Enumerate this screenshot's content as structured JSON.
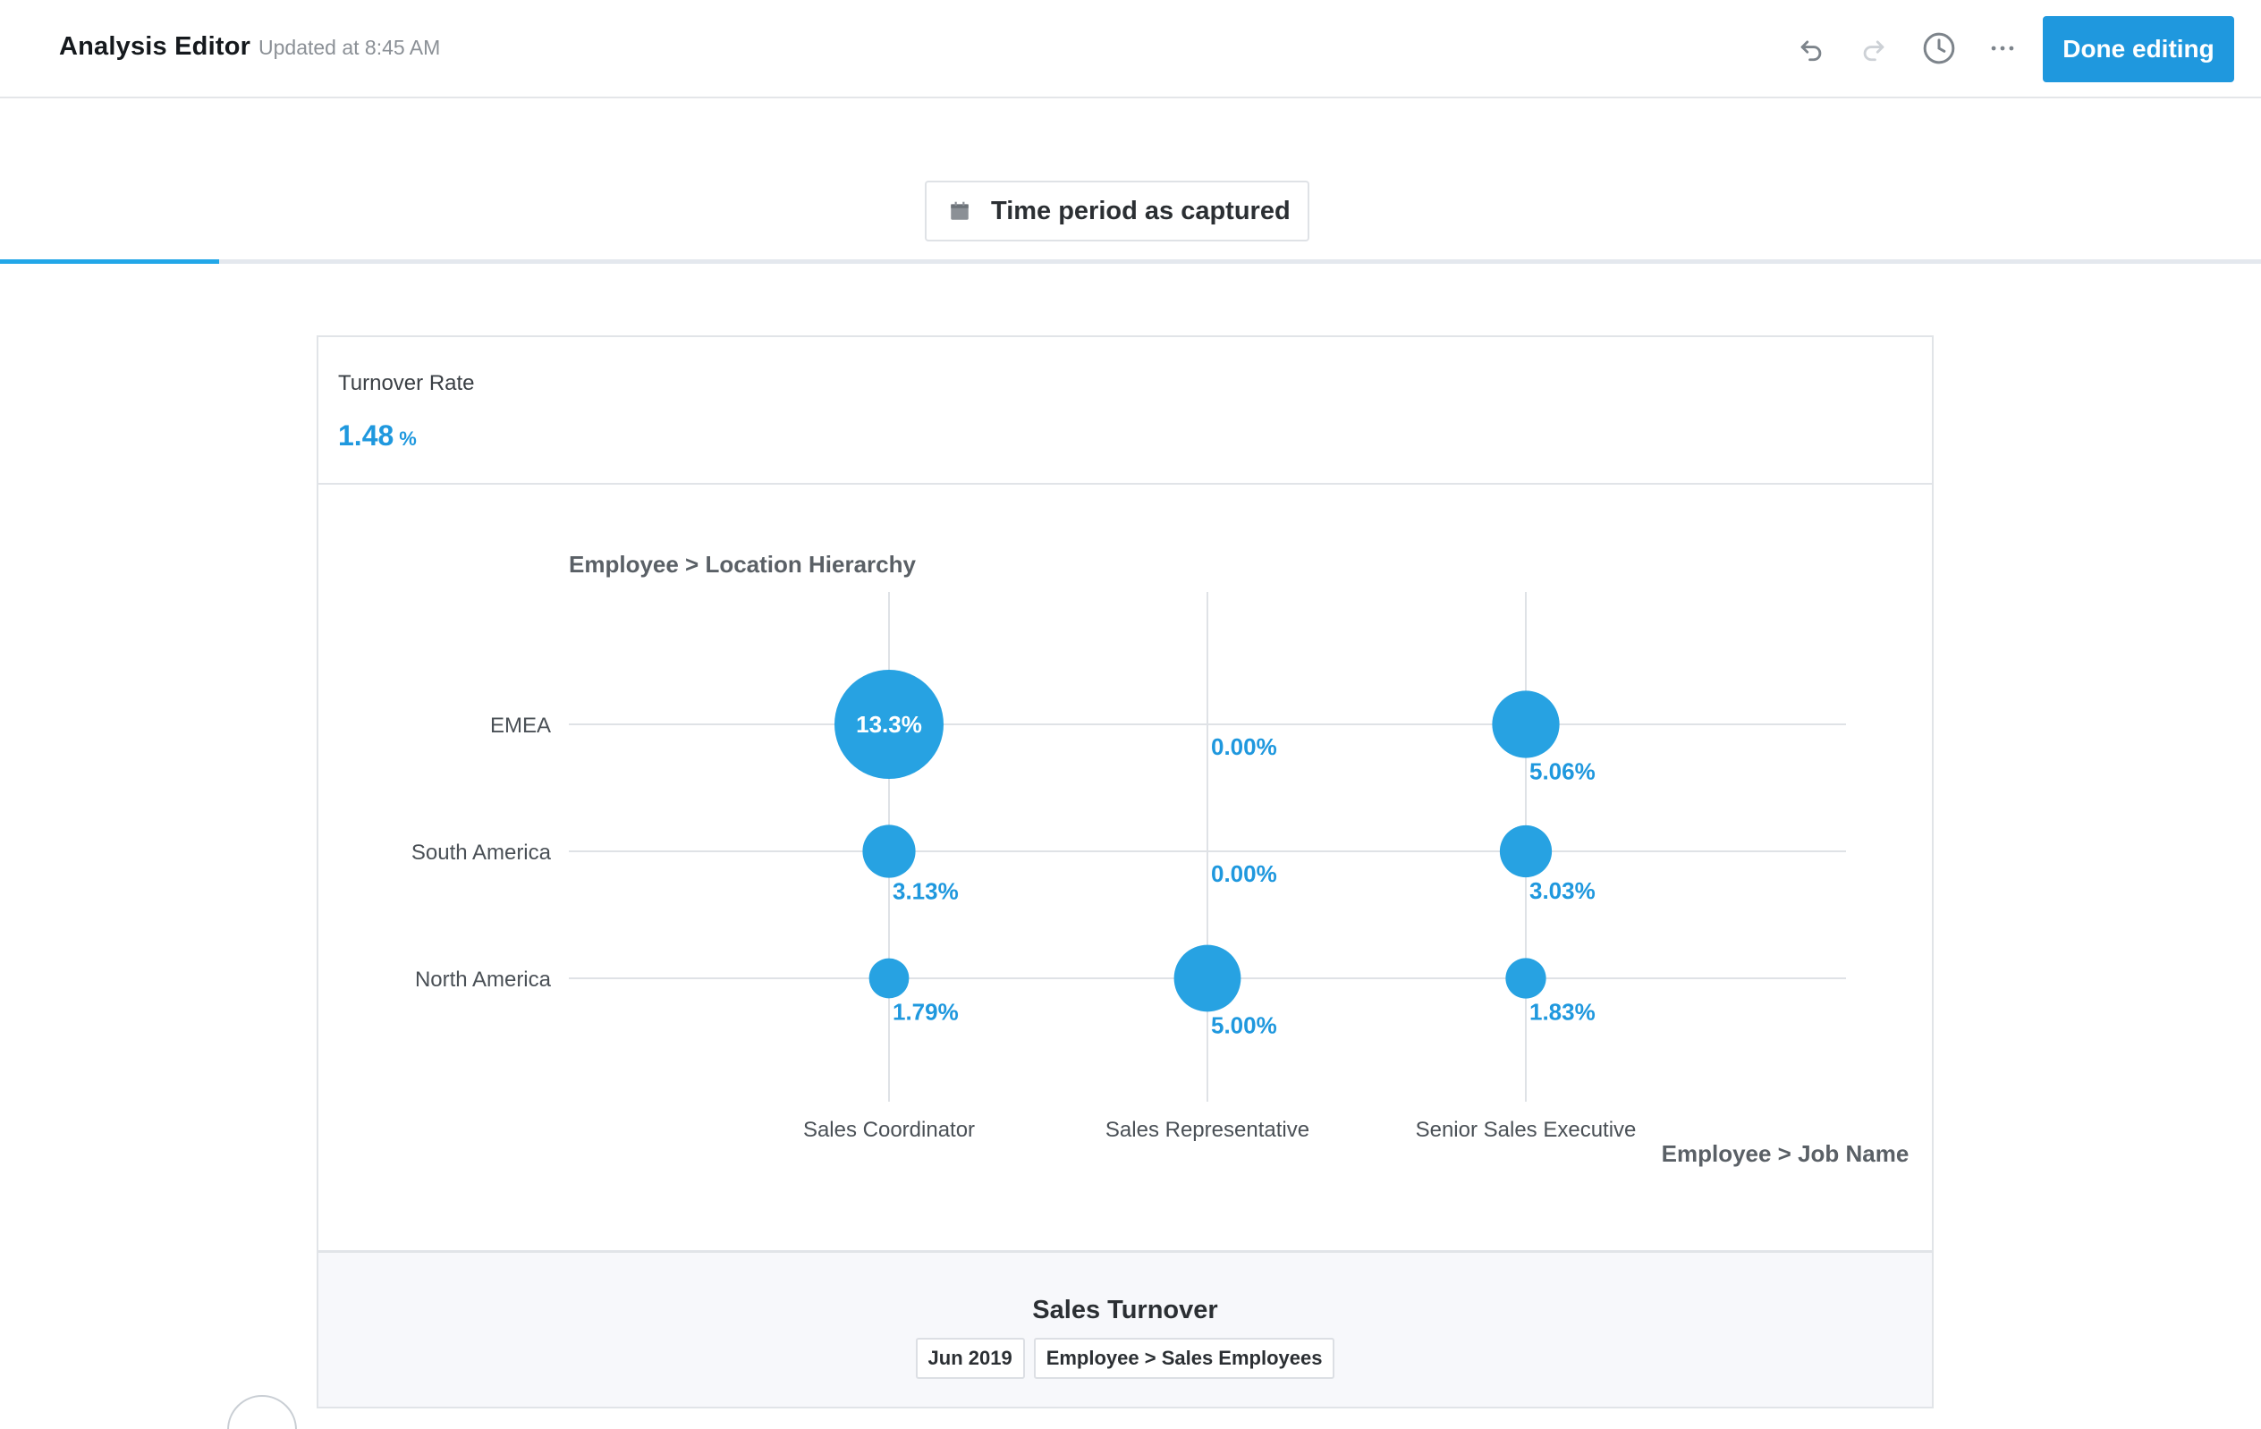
{
  "header": {
    "title": "Analysis Editor",
    "updated": "Updated at 8:45 AM",
    "icons": [
      "undo-icon",
      "redo-icon",
      "history-icon",
      "more-icon"
    ],
    "done_label": "Done editing"
  },
  "filter": {
    "icon": "calendar-icon",
    "label": "Time period as captured"
  },
  "progress": {
    "value_pct": 9.7,
    "color": "#22a7e8"
  },
  "metric": {
    "label": "Turnover Rate",
    "value": "1.48",
    "unit": "%"
  },
  "chart_data": {
    "type": "bubble",
    "ylabel": "Employee > Location Hierarchy",
    "xlabel": "Employee > Job Name",
    "categories_x": [
      "Sales Coordinator",
      "Sales Representative",
      "Senior Sales Executive"
    ],
    "categories_y": [
      "EMEA",
      "South America",
      "North America"
    ],
    "points": [
      {
        "x": "Sales Coordinator",
        "y": "EMEA",
        "value": 13.3,
        "label": "13.3%"
      },
      {
        "x": "Sales Representative",
        "y": "EMEA",
        "value": 0.0,
        "label": "0.00%"
      },
      {
        "x": "Senior Sales Executive",
        "y": "EMEA",
        "value": 5.06,
        "label": "5.06%"
      },
      {
        "x": "Sales Coordinator",
        "y": "South America",
        "value": 3.13,
        "label": "3.13%"
      },
      {
        "x": "Sales Representative",
        "y": "South America",
        "value": 0.0,
        "label": "0.00%"
      },
      {
        "x": "Senior Sales Executive",
        "y": "South America",
        "value": 3.03,
        "label": "3.03%"
      },
      {
        "x": "Sales Coordinator",
        "y": "North America",
        "value": 1.79,
        "label": "1.79%"
      },
      {
        "x": "Sales Representative",
        "y": "North America",
        "value": 5.0,
        "label": "5.00%"
      },
      {
        "x": "Senior Sales Executive",
        "y": "North America",
        "value": 1.83,
        "label": "1.83%"
      }
    ],
    "color": "#27a2e2",
    "grid": true
  },
  "footer": {
    "title": "Sales Turnover",
    "tags": [
      "Jun 2019",
      "Employee > Sales Employees"
    ]
  }
}
